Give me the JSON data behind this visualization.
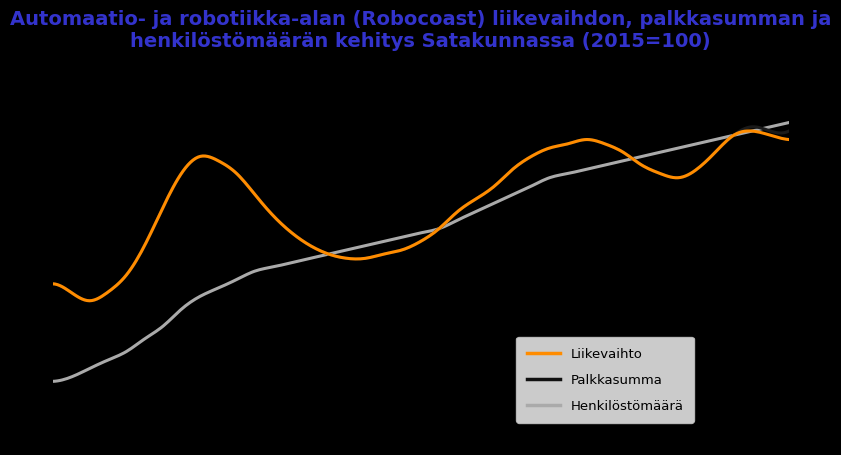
{
  "title": "Automaatio- ja robotiikka-alan (Robocoast) liikevaihdon, palkkasumman ja\nhenkilöstömäärän kehitys Satakunnassa (2015=100)",
  "title_color": "#3333cc",
  "background_color": "#000000",
  "plot_bg_color": "#000000",
  "liikevaihto": [
    78,
    76,
    74,
    76,
    80,
    87,
    96,
    104,
    108,
    107,
    104,
    99,
    94,
    90,
    87,
    85,
    84,
    84,
    85,
    86,
    88,
    91,
    95,
    98,
    101,
    105,
    108,
    110,
    111,
    112,
    111,
    109,
    106,
    104,
    103,
    105,
    109,
    113,
    114,
    113,
    112
  ],
  "palkkasumma": [
    78,
    76,
    74,
    76,
    80,
    87,
    96,
    104,
    108,
    107,
    104,
    99,
    94,
    90,
    87,
    85,
    84,
    84,
    85,
    86,
    88,
    91,
    95,
    98,
    101,
    105,
    108,
    110,
    111,
    112,
    111,
    109,
    106,
    104,
    103,
    105,
    109,
    113,
    115,
    114,
    114
  ],
  "henkilostomäärä": [
    55,
    56,
    58,
    60,
    62,
    65,
    68,
    72,
    75,
    77,
    79,
    81,
    82,
    83,
    84,
    85,
    86,
    87,
    88,
    89,
    90,
    91,
    93,
    95,
    97,
    99,
    101,
    103,
    104,
    105,
    106,
    107,
    108,
    109,
    110,
    111,
    112,
    113,
    114,
    115,
    116
  ],
  "liikevaihto_color": "#ff8c00",
  "palkkasumma_color": "#1a1a1a",
  "henkilostomäärä_color": "#aaaaaa",
  "title_fontsize": 14,
  "line_width": 2.2,
  "ylim": [
    40,
    130
  ],
  "xlim": [
    0,
    40
  ]
}
